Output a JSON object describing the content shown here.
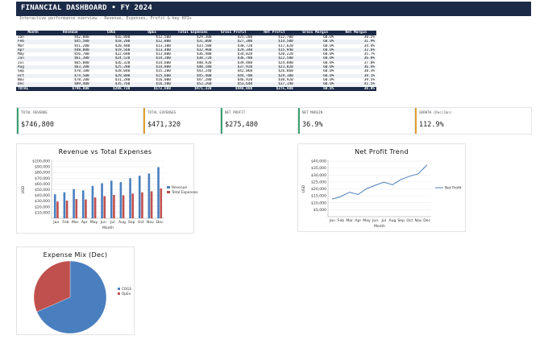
{
  "header": {
    "title": "FINANCIAL DASHBOARD  •  FY 2024",
    "subtitle": "Interactive performance overview · Revenue, Expenses, Profit & key KPIs"
  },
  "table": {
    "columns": [
      "Month",
      "Revenue",
      "COGS",
      "OpEx",
      "Total Expenses",
      "Gross Profit",
      "Net Profit",
      "Gross Margin",
      "Net Margin"
    ],
    "rows": [
      [
        "Jan",
        "$42,000",
        "$16,800",
        "$12,500",
        "$29,300",
        "$25,200",
        "$12,700",
        "60.0%",
        "30.2%"
      ],
      [
        "Feb",
        "$45,500",
        "$18,200",
        "$12,800",
        "$31,000",
        "$27,300",
        "$14,500",
        "60.0%",
        "31.9%"
      ],
      [
        "Mar",
        "$51,200",
        "$20,480",
        "$13,100",
        "$33,580",
        "$30,720",
        "$17,620",
        "60.0%",
        "34.4%"
      ],
      [
        "Apr",
        "$48,800",
        "$19,560",
        "$13,400",
        "$32,960",
        "$29,340",
        "$15,940",
        "60.0%",
        "32.6%"
      ],
      [
        "May",
        "$56,700",
        "$22,680",
        "$13,800",
        "$36,480",
        "$34,020",
        "$20,220",
        "60.0%",
        "35.7%"
      ],
      [
        "Jun",
        "$61,300",
        "$24,520",
        "$14,200",
        "$38,720",
        "$36,780",
        "$22,580",
        "60.0%",
        "36.8%"
      ],
      [
        "Jul",
        "$65,800",
        "$26,320",
        "$14,600",
        "$40,920",
        "$39,480",
        "$24,880",
        "60.0%",
        "37.8%"
      ],
      [
        "Aug",
        "$63,200",
        "$25,280",
        "$14,800",
        "$40,180",
        "$37,920",
        "$23,020",
        "60.0%",
        "36.4%"
      ],
      [
        "Sep",
        "$70,100",
        "$28,040",
        "$15,200",
        "$43,240",
        "$42,060",
        "$26,860",
        "60.0%",
        "38.3%"
      ],
      [
        "Oct",
        "$74,500",
        "$29,800",
        "$15,600",
        "$45,400",
        "$44,700",
        "$29,100",
        "60.0%",
        "39.1%"
      ],
      [
        "Nov",
        "$78,200",
        "$31,280",
        "$16,000",
        "$47,280",
        "$46,920",
        "$30,920",
        "60.0%",
        "39.5%"
      ],
      [
        "Dec",
        "$89,400",
        "$35,760",
        "$16,500",
        "$52,260",
        "$53,640",
        "$37,140",
        "60.0%",
        "41.5%"
      ]
    ],
    "total": [
      "TOTAL",
      "$746,800",
      "$298,720",
      "$172,600",
      "$471,320",
      "$448,080",
      "$275,480",
      "60.0%",
      "36.9%"
    ]
  },
  "kpis": [
    {
      "label": "TOTAL REVENUE",
      "value": "$746,800",
      "color": "#3aa06d"
    },
    {
      "label": "TOTAL EXPENSES",
      "value": "$471,320",
      "color": "#e0a030"
    },
    {
      "label": "NET PROFIT",
      "value": "$275,480",
      "color": "#3aa06d"
    },
    {
      "label": "NET MARGIN",
      "value": "36.9%",
      "color": "#3aa06d"
    },
    {
      "label": "GROWTH (Dec/Jan)",
      "value": "112.9%",
      "color": "#e0a030"
    }
  ],
  "chart_data": [
    {
      "type": "bar",
      "title": "Revenue vs Total Expenses",
      "xlabel": "Month",
      "ylabel": "USD",
      "categories": [
        "Jan",
        "Feb",
        "Mar",
        "Apr",
        "May",
        "Jun",
        "Jul",
        "Aug",
        "Sep",
        "Oct",
        "Nov",
        "Dec"
      ],
      "series": [
        {
          "name": "Revenue",
          "color": "#4a7fbf",
          "values": [
            42000,
            45500,
            51200,
            48800,
            56700,
            61300,
            65800,
            63200,
            70100,
            74500,
            78200,
            89400
          ]
        },
        {
          "name": "Total Expenses",
          "color": "#c0504d",
          "values": [
            29300,
            31000,
            33580,
            32960,
            36480,
            38720,
            40920,
            40180,
            43240,
            45400,
            47280,
            52260
          ]
        }
      ],
      "yticks": [
        "$10,000",
        "$20,000",
        "$30,000",
        "$40,000",
        "$50,000",
        "$60,000",
        "$70,000",
        "$80,000",
        "$90,000",
        "$100,000"
      ],
      "ylim": [
        0,
        100000
      ],
      "grid": true,
      "legend": "right"
    },
    {
      "type": "line",
      "title": "Net Profit Trend",
      "xlabel": "Month",
      "ylabel": "USD",
      "categories": [
        "Jan",
        "Feb",
        "Mar",
        "Apr",
        "May",
        "Jun",
        "Jul",
        "Aug",
        "Sep",
        "Oct",
        "Nov",
        "Dec"
      ],
      "series": [
        {
          "name": "Net Profit",
          "color": "#4a7fbf",
          "values": [
            12700,
            14500,
            17620,
            15940,
            20220,
            22580,
            24880,
            23020,
            26860,
            29100,
            30920,
            37140
          ]
        }
      ],
      "yticks": [
        "$5,000",
        "$10,000",
        "$15,000",
        "$20,000",
        "$25,000",
        "$30,000",
        "$35,000",
        "$40,000"
      ],
      "ylim": [
        0,
        40000
      ],
      "grid": true,
      "legend": "right"
    },
    {
      "type": "pie",
      "title": "Expense Mix (Dec)",
      "labels": [
        "COGS",
        "OpEx"
      ],
      "colors": [
        "#4a7fbf",
        "#c0504d"
      ],
      "values": [
        35760,
        16500
      ],
      "legend": "right"
    }
  ]
}
